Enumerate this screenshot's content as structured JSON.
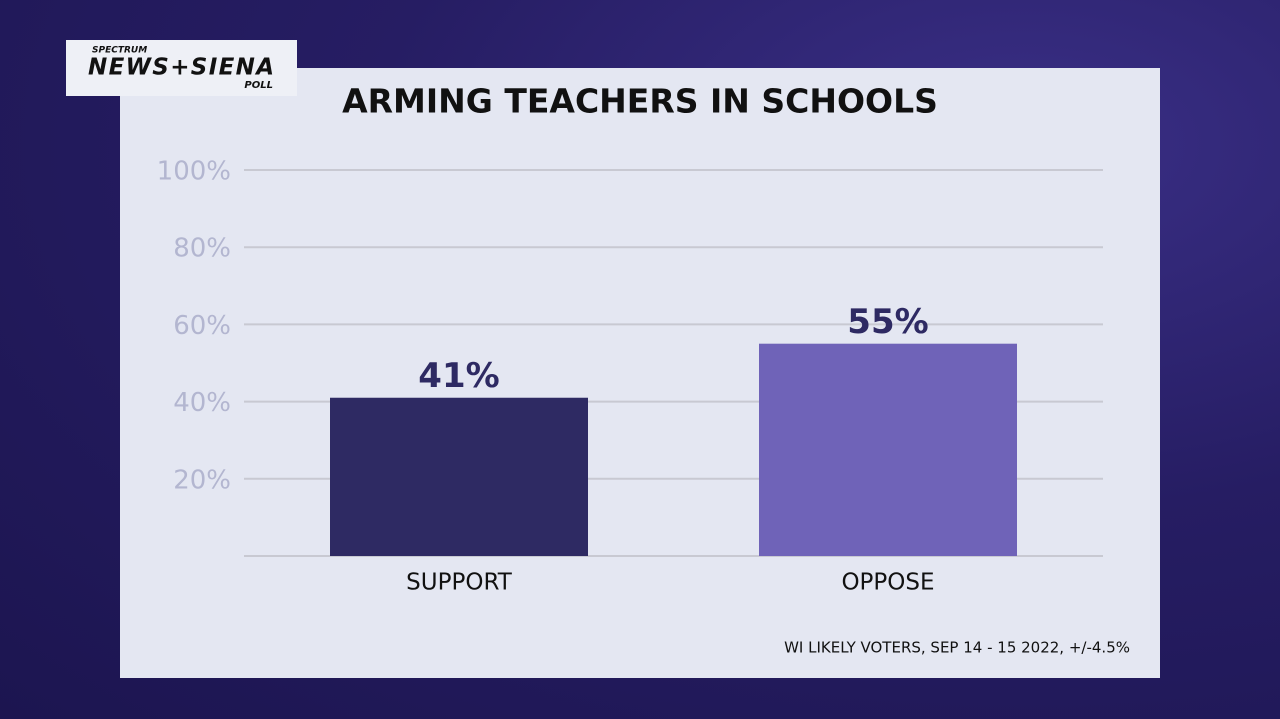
{
  "logo": {
    "top": "SPECTRUM",
    "main": "NEWS+SIENA",
    "bottom": "POLL"
  },
  "chart_data": {
    "type": "bar",
    "title": "ARMING TEACHERS IN SCHOOLS",
    "categories": [
      "SUPPORT",
      "OPPOSE"
    ],
    "series": [
      {
        "name": "Share",
        "values": [
          41,
          55
        ],
        "value_labels": [
          "41%",
          "55%"
        ]
      }
    ],
    "colors": [
      "#2e2a63",
      "#6f63b8"
    ],
    "ylim": [
      0,
      100
    ],
    "yticks": [
      {
        "value": 20,
        "label": "20%"
      },
      {
        "value": 40,
        "label": "40%"
      },
      {
        "value": 60,
        "label": "60%"
      },
      {
        "value": 80,
        "label": "80%"
      },
      {
        "value": 100,
        "label": "100%"
      }
    ],
    "grid": true,
    "note": "WI LIKELY VOTERS, SEP 14 - 15 2022, +/-4.5%"
  }
}
